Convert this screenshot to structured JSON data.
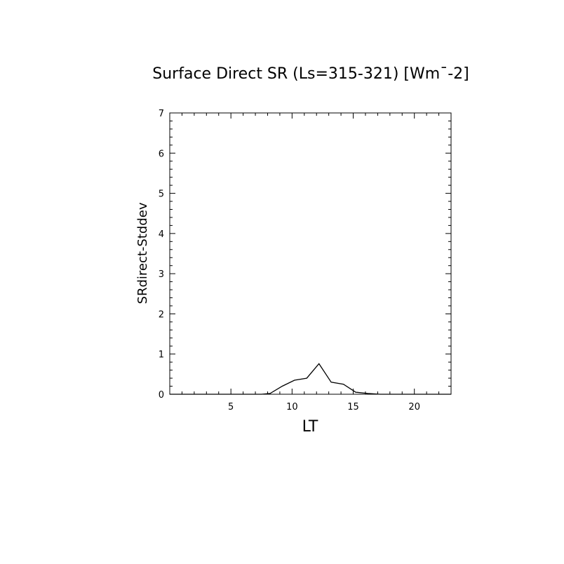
{
  "chart_data": {
    "type": "line",
    "title": "Surface Direct SR (Ls=315-321) [Wm^-2]",
    "xlabel": "LT",
    "ylabel": "SRdirect-Stddev",
    "xlim": [
      0,
      23
    ],
    "ylim": [
      0,
      7
    ],
    "xticks": [
      5,
      10,
      15,
      20
    ],
    "yticks": [
      0,
      1,
      2,
      3,
      4,
      5,
      6,
      7
    ],
    "grid": false,
    "series": [
      {
        "x": [
          0,
          1,
          2,
          3,
          4,
          5,
          6,
          7,
          7.5,
          8.2,
          9.2,
          10.2,
          11.2,
          12.2,
          13.2,
          14.2,
          15.2,
          16.2,
          17.2,
          18,
          19,
          20,
          21,
          22,
          23
        ],
        "values": [
          0,
          0,
          0,
          0,
          0,
          0,
          0,
          0,
          0.0,
          0.02,
          0.2,
          0.35,
          0.4,
          0.76,
          0.3,
          0.25,
          0.05,
          0.02,
          0.0,
          0,
          0,
          0,
          0,
          0,
          0
        ]
      }
    ]
  }
}
